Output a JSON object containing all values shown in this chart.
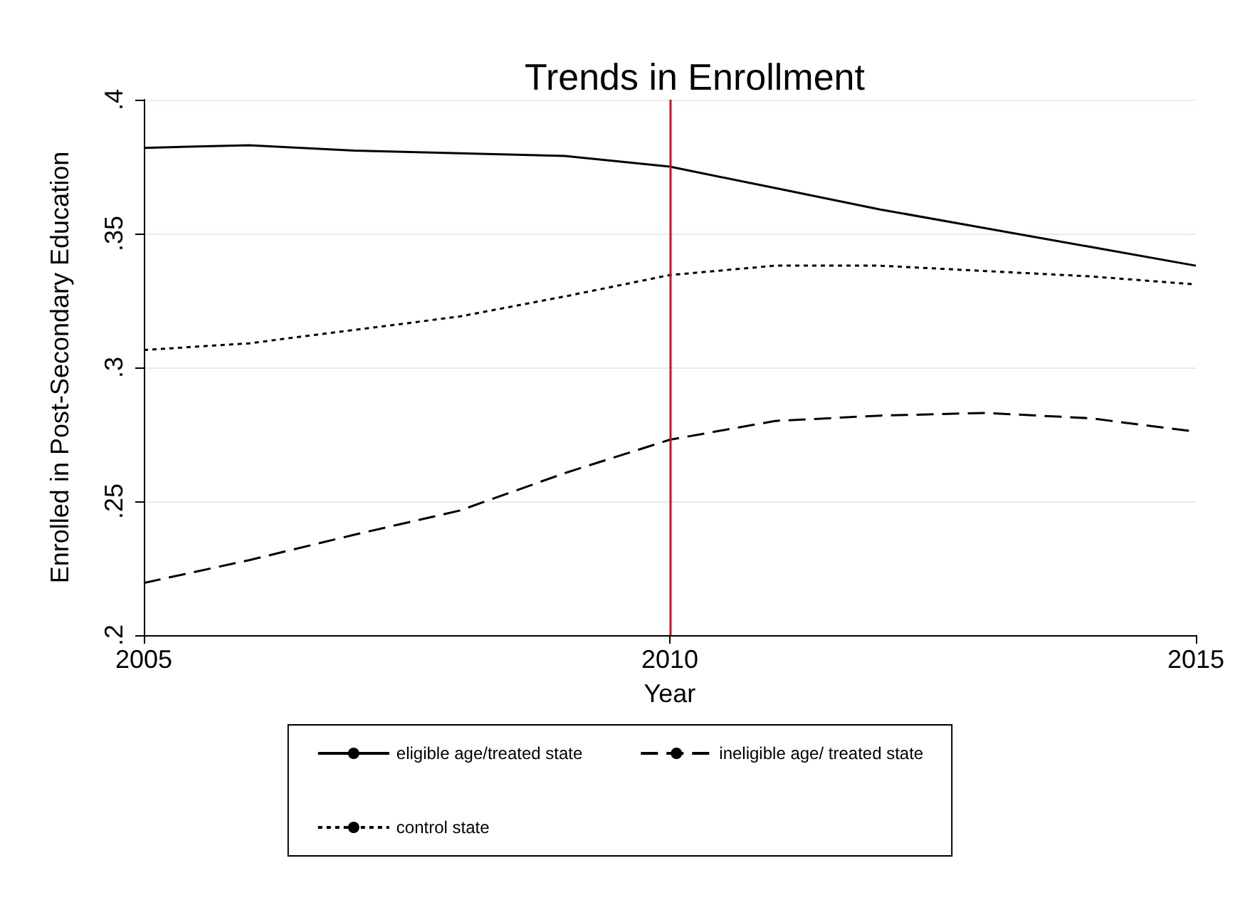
{
  "chart_data": {
    "type": "line",
    "title": "Trends in Enrollment",
    "xlabel": "Year",
    "ylabel": "Enrolled in Post-Secondary Education",
    "x": [
      2005,
      2006,
      2007,
      2008,
      2009,
      2010,
      2011,
      2012,
      2013,
      2014,
      2015
    ],
    "series": [
      {
        "name": "eligible age/treated state",
        "color": "#000000",
        "line_style": "solid",
        "values": [
          0.382,
          0.383,
          0.381,
          0.38,
          0.379,
          0.375,
          0.367,
          0.359,
          0.352,
          0.345,
          0.338
        ]
      },
      {
        "name": "ineligible age/ treated state",
        "color": "#000000",
        "line_style": "dashed",
        "values": [
          0.2195,
          0.228,
          0.2375,
          0.2465,
          0.2605,
          0.273,
          0.28,
          0.282,
          0.283,
          0.281,
          0.276
        ]
      },
      {
        "name": "control state",
        "color": "#000000",
        "line_style": "dotted",
        "values": [
          0.3065,
          0.309,
          0.314,
          0.319,
          0.3265,
          0.3345,
          0.338,
          0.338,
          0.336,
          0.334,
          0.331
        ]
      }
    ],
    "xlim": [
      2005,
      2015
    ],
    "xticks": [
      2005,
      2010,
      2015
    ],
    "ylim": [
      0.2,
      0.4
    ],
    "yticks": [
      {
        "value": 0.2,
        "label": ".2"
      },
      {
        "value": 0.25,
        "label": ".25"
      },
      {
        "value": 0.3,
        "label": ".3"
      },
      {
        "value": 0.35,
        "label": ".35"
      },
      {
        "value": 0.4,
        "label": ".4"
      }
    ],
    "ref_lines": [
      {
        "axis": "x",
        "value": 2010,
        "color": "#c8102e"
      }
    ],
    "grid": "y",
    "legend": "bottom",
    "marker": "none"
  }
}
